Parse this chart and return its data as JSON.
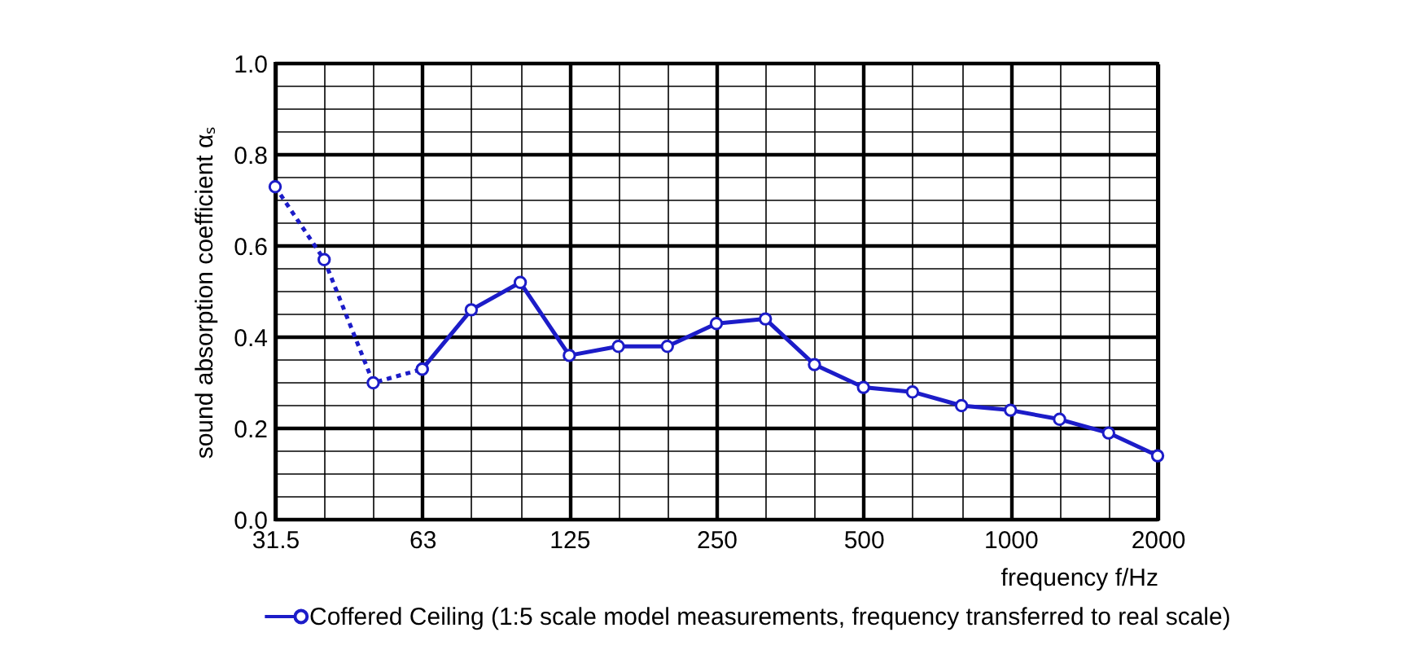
{
  "chart_data": {
    "type": "line",
    "xlabel": "frequency f/Hz",
    "ylabel": "sound absorption coefficient αₛ",
    "categories": [
      "31.5",
      null,
      null,
      "63",
      null,
      null,
      "125",
      null,
      null,
      "250",
      null,
      null,
      "500",
      null,
      null,
      "1000",
      null,
      null,
      "2000"
    ],
    "series": [
      {
        "color": "#1c1cc8",
        "line_style": "dotted",
        "values": [
          0.73,
          0.57,
          0.3,
          0.33,
          null,
          null,
          null,
          null,
          null,
          null,
          null,
          null,
          null,
          null,
          null,
          null,
          null,
          null,
          null
        ]
      },
      {
        "name": "Coffered Ceiling (1:5 scale model measurements, frequency transferred to real scale)",
        "color": "#1c1cc8",
        "line_style": "solid",
        "values": [
          null,
          null,
          null,
          0.33,
          0.46,
          0.52,
          0.36,
          0.38,
          0.38,
          0.43,
          0.44,
          0.34,
          0.29,
          0.28,
          0.25,
          0.24,
          0.22,
          0.19,
          0.14
        ]
      }
    ],
    "ylim": [
      0,
      1
    ],
    "yticks": [
      {
        "value": 0,
        "label": "0.0"
      },
      {
        "value": 0.05,
        "label": null
      },
      {
        "value": 0.1,
        "label": null
      },
      {
        "value": 0.15,
        "label": null
      },
      0.2,
      {
        "value": 0.25,
        "label": null
      },
      {
        "value": 0.3,
        "label": null
      },
      {
        "value": 0.35,
        "label": null
      },
      0.4,
      {
        "value": 0.45,
        "label": null
      },
      {
        "value": 0.5,
        "label": null
      },
      {
        "value": 0.55,
        "label": null
      },
      0.6,
      {
        "value": 0.65,
        "label": null
      },
      {
        "value": 0.7,
        "label": null
      },
      {
        "value": 0.75,
        "label": null
      },
      0.8,
      {
        "value": 0.85,
        "label": null
      },
      {
        "value": 0.9,
        "label": null
      },
      {
        "value": 0.95,
        "label": null
      },
      {
        "value": 1,
        "label": "1.0"
      }
    ],
    "grid": true,
    "legend": "bottom",
    "marker": "circle"
  }
}
